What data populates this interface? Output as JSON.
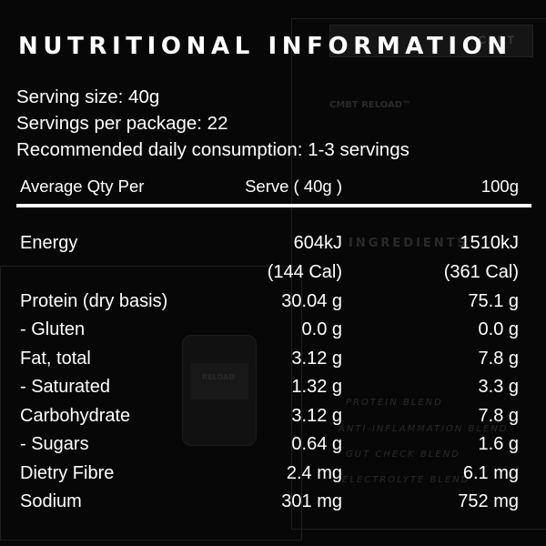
{
  "title": "NUTRITIONAL INFORMATION",
  "serving_info": [
    "Serving size: 40g",
    "Servings per package: 22",
    "Recommended daily consumption: 1-3 servings"
  ],
  "table": {
    "headers": [
      "Average Qty Per",
      "Serve ( 40g )",
      "100g"
    ],
    "rows": [
      {
        "label": "Energy",
        "serve": "604kJ",
        "per100": "1510kJ"
      },
      {
        "label": "",
        "serve": "(144 Cal)",
        "per100": "(361 Cal)"
      },
      {
        "label": "Protein (dry basis)",
        "serve": "30.04 g",
        "per100": "75.1 g"
      },
      {
        "label": "- Gluten",
        "serve": "0.0 g",
        "per100": "0.0 g"
      },
      {
        "label": "Fat, total",
        "serve": "3.12 g",
        "per100": "7.8 g"
      },
      {
        "label": "- Saturated",
        "serve": "1.32 g",
        "per100": "3.3 g"
      },
      {
        "label": "Carbohydrate",
        "serve": "3.12 g",
        "per100": "7.8 g"
      },
      {
        "label": "- Sugars",
        "serve": "0.64 g",
        "per100": "1.6 g"
      },
      {
        "label": "Dietry Fibre",
        "serve": "2.4 mg",
        "per100": "6.1 mg"
      },
      {
        "label": "Sodium",
        "serve": "301 mg",
        "per100": "752 mg"
      }
    ]
  },
  "background": {
    "cart_label": "CART",
    "ghost_ingredients_heading": "INGREDIENTS",
    "ghost_blends": [
      "PROTEIN BLEND",
      "ANTI-INFLAMMATION BLEND",
      "GUT CHECK BLEND",
      "ELECTROLYTE BLEND"
    ],
    "ghost_brand": "CMBT RELOAD™",
    "ghost_product_label": "RELOAD"
  },
  "colors": {
    "background": "#070707",
    "text": "#ffffff",
    "ghost": "#2a2a2a"
  }
}
